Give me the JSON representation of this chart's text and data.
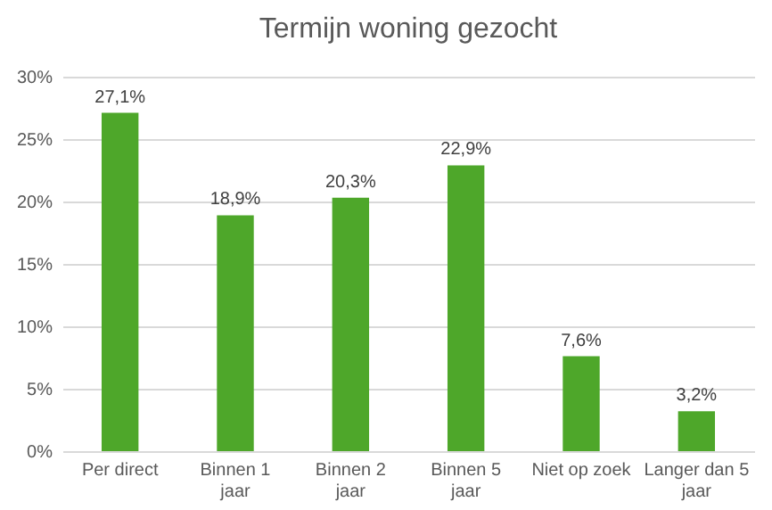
{
  "chart_data": {
    "type": "bar",
    "title": "Termijn woning gezocht",
    "categories": [
      "Per direct",
      "Binnen 1 jaar",
      "Binnen 2 jaar",
      "Binnen 5 jaar",
      "Niet op zoek",
      "Langer dan 5 jaar"
    ],
    "values": [
      27.1,
      18.9,
      20.3,
      22.9,
      7.6,
      3.2
    ],
    "value_labels": [
      "27,1%",
      "18,9%",
      "20,3%",
      "22,9%",
      "7,6%",
      "3,2%"
    ],
    "color": "#4ea72a",
    "ylim": [
      0,
      30
    ],
    "yticks": [
      {
        "value": 0,
        "label": "0%"
      },
      {
        "value": 5,
        "label": "5%"
      },
      {
        "value": 10,
        "label": "10%"
      },
      {
        "value": 15,
        "label": "15%"
      },
      {
        "value": 20,
        "label": "20%"
      },
      {
        "value": 25,
        "label": "25%"
      },
      {
        "value": 30,
        "label": "30%"
      }
    ],
    "grid": "y"
  }
}
